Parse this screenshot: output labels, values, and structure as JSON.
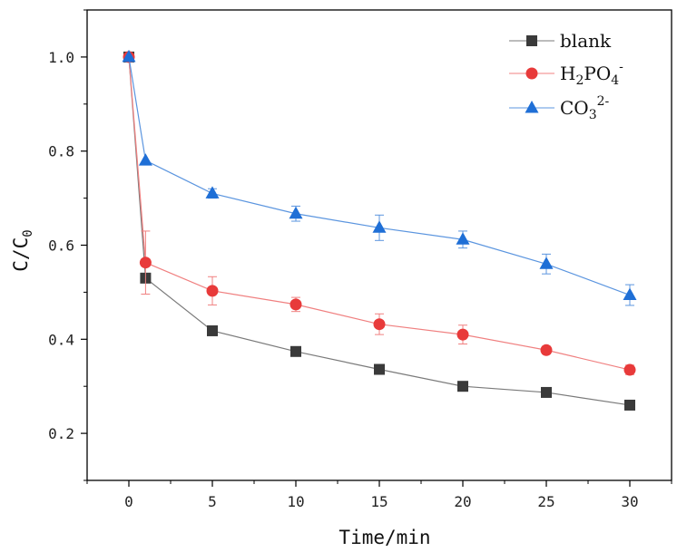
{
  "chart_data": {
    "type": "line",
    "title": "",
    "xlabel": "Time/min",
    "ylabel": {
      "main": "C/C",
      "sub": "0"
    },
    "xlim": [
      -2.5,
      32.5
    ],
    "ylim": [
      0.1,
      1.1
    ],
    "xticks": [
      0,
      5,
      10,
      15,
      20,
      25,
      30
    ],
    "yticks": [
      0.2,
      0.4,
      0.6,
      0.8,
      1.0
    ],
    "xtick_labels": [
      "0",
      "5",
      "10",
      "15",
      "20",
      "25",
      "30"
    ],
    "ytick_labels": [
      "0.2",
      "0.4",
      "0.6",
      "0.8",
      "1.0"
    ],
    "x": [
      0,
      1,
      5,
      10,
      15,
      20,
      25,
      30
    ],
    "legend_position": "top-right",
    "series": [
      {
        "name": "blank",
        "legend": {
          "main": "blank",
          "sub": "",
          "sup": ""
        },
        "marker": "square",
        "color": "#3a3a3a",
        "line_color": "#7a7a7a",
        "values": [
          1.0,
          0.53,
          0.418,
          0.374,
          0.336,
          0.3,
          0.287,
          0.26
        ],
        "errors": [
          0,
          0,
          0,
          0,
          0,
          0,
          0,
          0
        ]
      },
      {
        "name": "H2PO4-",
        "legend": {
          "main": "H",
          "sub": "2",
          "main2": "PO",
          "sub2": "4",
          "sup": "-"
        },
        "marker": "circle",
        "color": "#e83a3a",
        "line_color": "#f08080",
        "values": [
          1.0,
          0.563,
          0.503,
          0.474,
          0.432,
          0.41,
          0.377,
          0.335
        ],
        "errors": [
          0,
          0.067,
          0.03,
          0.015,
          0.022,
          0.02,
          0.008,
          0.01
        ]
      },
      {
        "name": "CO3 2-",
        "legend": {
          "main": "CO",
          "sub": "3",
          "sup": "2-"
        },
        "marker": "triangle",
        "color": "#1f6fd6",
        "line_color": "#5b95df",
        "values": [
          1.0,
          0.78,
          0.71,
          0.667,
          0.637,
          0.612,
          0.56,
          0.494
        ],
        "errors": [
          0,
          0,
          0.01,
          0.016,
          0.027,
          0.018,
          0.021,
          0.022
        ]
      }
    ]
  }
}
